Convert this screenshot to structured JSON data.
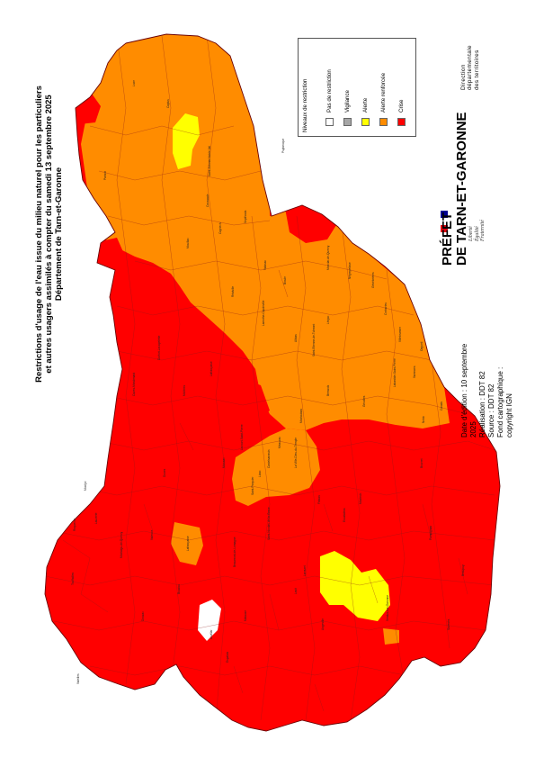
{
  "title": {
    "line1": "Restrictions d'usage de l'eau issue du milieu naturel pour les particuliers",
    "line2": "et autres usagers assimilés à compter du samedi 13 septembre 2025",
    "line3": "Département de Tarn-et-Garonne"
  },
  "legend": {
    "heading": "Niveaux de restriction",
    "items": [
      {
        "label": "Pas de restriction",
        "color": "#ffffff"
      },
      {
        "label": "Vigilance",
        "color": "#a6a6a6"
      },
      {
        "label": "Alerte",
        "color": "#ffff00"
      },
      {
        "label": "Alerte renforcée",
        "color": "#ff8c00"
      },
      {
        "label": "Crise",
        "color": "#ff0000"
      }
    ]
  },
  "logo": {
    "prefet_line1": "PRÉFET",
    "prefet_line2": "DE TARN-ET-GARONNE",
    "devise": [
      "Liberté",
      "Égalité",
      "Fraternité"
    ],
    "direction": [
      "Direction",
      "départementale",
      "des territoires"
    ]
  },
  "credits": {
    "date_line1": "Date d'édition : 10 septembre",
    "date_line2": "2025",
    "realisation": "Réalisation : DDT 82",
    "source": "Source : DDT 82",
    "fond_line1": "Fond cartographique :",
    "fond_line2": "copyright IGN"
  },
  "map": {
    "colors": {
      "crise": "#ff0000",
      "alerte_renforcee": "#ff8c00",
      "alerte": "#ffff00",
      "none": "#ffffff",
      "border": "#8b1a1a"
    },
    "major_labels": [
      "Montauban",
      "Castelsarrasin",
      "Moissac",
      "Caussade",
      "Lafrançaise",
      "Valence",
      "Beaumont-de-Lomagne",
      "Grisolles",
      "Nègrepelisse",
      "Caylus",
      "Saint-Antonin-Noble-Val",
      "Montech",
      "Verdun-sur-Garonne",
      "Lauzerte",
      "Montaigu-de-Quercy",
      "Molières",
      "Saint-Nicolas-de-la-Grave",
      "Lavit",
      "Auvillar",
      "Bressols",
      "Labastide-Saint-Pierre",
      "Villebrumier",
      "Monclar-de-Quercy",
      "Septfonds",
      "Puylaroque",
      "Caylus",
      "Réalville",
      "Albias",
      "Lamothe-Capdeville",
      "Saint-Etienne-de-Tulmont",
      "Léojac",
      "Finhan",
      "Escatalens",
      "Dunes",
      "Donzac",
      "Larrazet",
      "Angeville",
      "Bourret",
      "Pompignan",
      "Savenès",
      "Beaupuy",
      "Cazes-Mondenard",
      "Durfort-Lacapelette",
      "Boudou",
      "Malause",
      "Espalais",
      "Valeilles",
      "Touffailles",
      "Roquecor",
      "Montjoi",
      "Sauveterre",
      "Parisot",
      "Loze",
      "Mouillac",
      "Cayriech",
      "Vaïssac",
      "Bioule",
      "Génébrières",
      "Corbarieu",
      "Reyniès",
      "Varennes",
      "Orgueil",
      "Nohic",
      "Canals",
      "Dieupentale",
      "Campsas",
      "Fabas",
      "Labastide-du-Temple",
      "Meauzac",
      "Barry-d'Islemade",
      "Lizac",
      "La Ville-Dieu-du-Temple",
      "Saint-Porquier",
      "Lacourt-Saint-Pierre",
      "Saint-Aignan",
      "Castelmayran",
      "Garganvillar",
      "Lafitte",
      "Cordes-Tolosannes",
      "Auterive",
      "Marsac",
      "Gramont",
      "Castéra-Bouzet",
      "Sistels",
      "Merles",
      "Caumont",
      "Glatens",
      "Esparsac",
      "Faudoas",
      "Marignac",
      "Sérignac",
      "Maubec",
      "Vigueron",
      "Comberouger",
      "Bouillac",
      "Mas-Grenier",
      "Saint-Sardos",
      "Belbèze-en-Lomagne",
      "Lamothe-Cumont",
      "Beaupuy",
      "Saint-Arroumex",
      "Cumont",
      "Mansonville",
      "Gasques",
      "Perville",
      "Saint-Paul-d'Espis",
      "Castelsagrat",
      "Montesquieu",
      "Miramont-de-Quercy",
      "Montagudet",
      "Bouloc",
      "Lacour",
      "Brassac",
      "Saint-Amans-de-Pellagal",
      "Saint-Nazaire-de-Valentane",
      "Fauroux",
      "Belvèze",
      "Lacapelle-Livron",
      "Espinas",
      "Ginals",
      "Verfeil",
      "Varen",
      "Castanet",
      "Laguépie",
      "Saint-Projet",
      "Lavaurette",
      "Feneyrols",
      "Cazals",
      "Montrosier",
      "Puylagarde",
      "Monteils",
      "Lapenche",
      "Saint-Cirq",
      "Montalzat",
      "Montpezat-de-Quercy",
      "Saint-Vincent-d'Autéjac",
      "Puycornet",
      "Vazerac",
      "Labarthe",
      "Lafrançaise",
      "Piquecos",
      "Villemade",
      "Montbeton",
      "Lacapelle-Livron"
    ]
  }
}
